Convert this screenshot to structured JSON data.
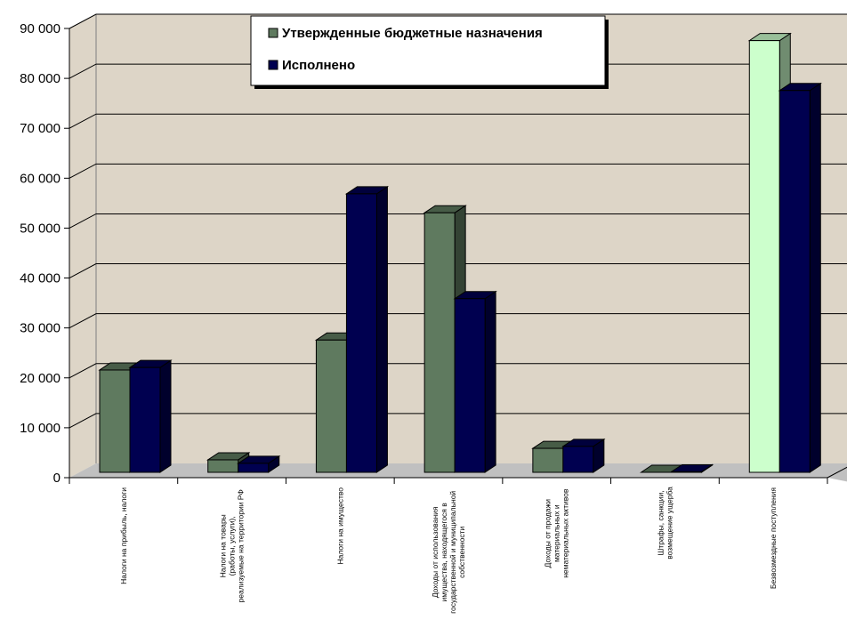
{
  "chart_data": {
    "type": "bar",
    "categories": [
      [
        "Налоги на прибыль, налоги"
      ],
      [
        "Налоги на товары",
        "(работы, услуги),",
        "реализуемые на территории РФ"
      ],
      [
        "Налоги на имущество"
      ],
      [
        "Доходы от использования",
        "имущества, находящегося в",
        "государственной и муниципальной",
        "собственности"
      ],
      [
        "Доходы от продажи",
        "материальных и",
        "нематериальных активов"
      ],
      [
        "Штрафы, санкции,",
        "возмещение ущерба"
      ],
      [
        "Безвозмездные поступления"
      ]
    ],
    "series": [
      {
        "name": "Утвержденные бюджетные назначения",
        "color": "#5f7a5f",
        "values": [
          20500,
          2500,
          26500,
          52000,
          4800,
          0,
          86500
        ],
        "highlight": {
          "index": 6,
          "color": "#ccffcc"
        }
      },
      {
        "name": "Исполнено",
        "color": "#000050",
        "values": [
          21000,
          1800,
          55800,
          34800,
          5200,
          100,
          76500
        ]
      }
    ],
    "yticks": [
      "0",
      "10 000",
      "20 000",
      "30 000",
      "40 000",
      "50 000",
      "60 000",
      "70 000",
      "80 000",
      "90 000"
    ],
    "ylim": [
      0,
      90000
    ],
    "grid": true,
    "legend_position": "top-center",
    "wall_color": "#ddd5c7",
    "floor_color": "#c0c0c0"
  }
}
